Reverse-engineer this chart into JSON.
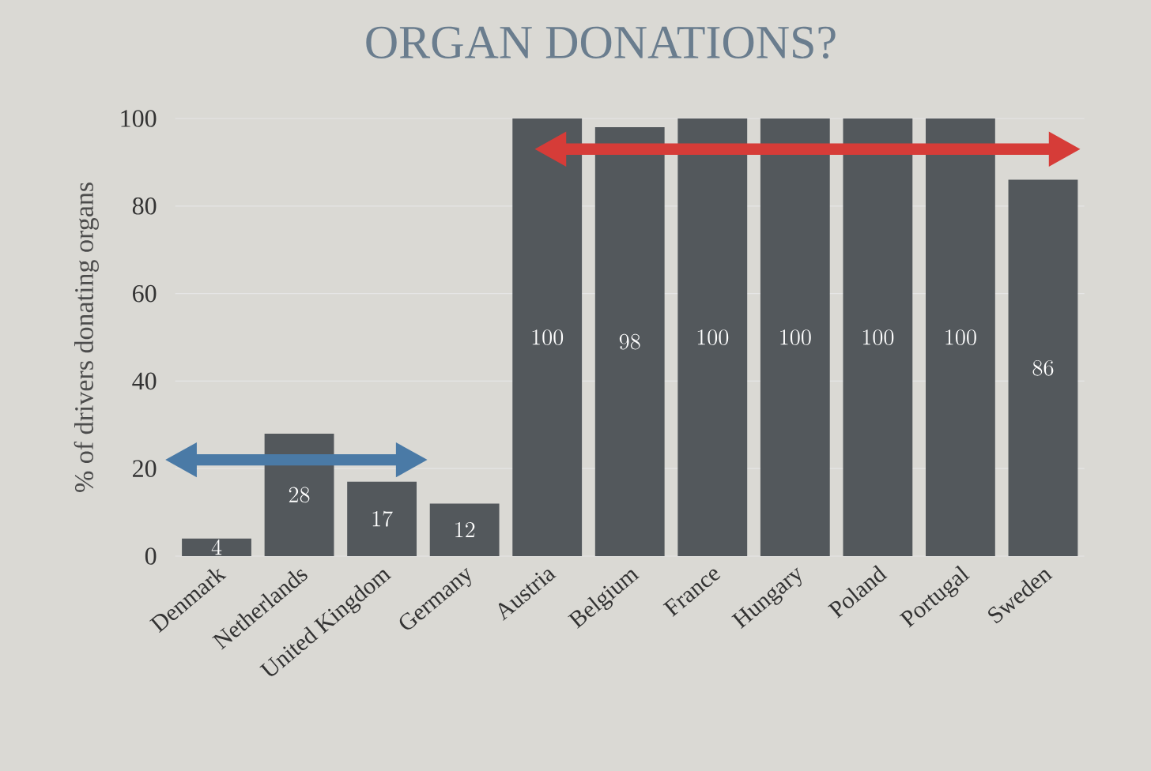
{
  "chart_data": {
    "type": "bar",
    "title": "ORGAN DONATIONS?",
    "ylabel": "% of drivers donating organs",
    "categories": [
      "Denmark",
      "Netherlands",
      "United Kingdom",
      "Germany",
      "Austria",
      "Belgium",
      "France",
      "Hungary",
      "Poland",
      "Portugal",
      "Sweden"
    ],
    "values": [
      4,
      28,
      17,
      12,
      100,
      98,
      100,
      100,
      100,
      100,
      86
    ],
    "color": "#53585c",
    "ylim": [
      0,
      100
    ],
    "yticks": [
      0,
      20,
      40,
      60,
      80,
      100
    ],
    "grid": "y",
    "data_labels": true
  }
}
